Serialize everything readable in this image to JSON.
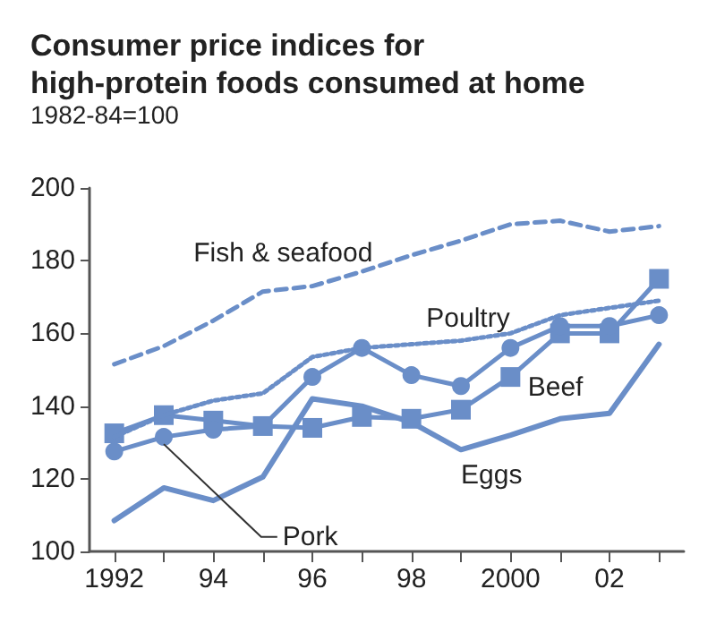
{
  "chart_data": {
    "type": "line",
    "title": "Consumer price indices for\nhigh-protein foods consumed at home",
    "subtitle": "1982-84=100",
    "x": [
      1992,
      1993,
      1994,
      1995,
      1996,
      1997,
      1998,
      1999,
      2000,
      2001,
      2002,
      2003
    ],
    "xlim": [
      1991.5,
      2003.5
    ],
    "xticks": [
      1992,
      {
        "value": 1993,
        "label": null
      },
      {
        "value": 1994,
        "label": "94"
      },
      {
        "value": 1995,
        "label": null
      },
      {
        "value": 1996,
        "label": "96"
      },
      {
        "value": 1997,
        "label": null
      },
      {
        "value": 1998,
        "label": "98"
      },
      {
        "value": 1999,
        "label": null
      },
      2000,
      {
        "value": 2001,
        "label": null
      },
      {
        "value": 2002,
        "label": "02"
      },
      {
        "value": 2003,
        "label": null
      }
    ],
    "ylim": [
      100,
      200
    ],
    "yticks": [
      100,
      120,
      140,
      160,
      180,
      200
    ],
    "grid": false,
    "legend": false,
    "series": [
      {
        "name": "Fish & seafood",
        "color": "#6a8ec8",
        "line_style": "dashed",
        "marker": "none",
        "values": [
          151.5,
          156.5,
          163.5,
          171.5,
          173,
          177,
          181.5,
          185.5,
          190,
          191,
          188,
          189.5
        ]
      },
      {
        "name": "Poultry",
        "color": "#6a8ec8",
        "line_style": "dotted",
        "marker": "none",
        "values": [
          131.5,
          137.5,
          141.5,
          143.5,
          153.5,
          156,
          157,
          158,
          160,
          165,
          167,
          169
        ]
      },
      {
        "name": "Pork",
        "color": "#6a8ec8",
        "line_style": "solid",
        "marker": "circle",
        "values": [
          127.5,
          131.5,
          133.5,
          134.5,
          148,
          156,
          148.5,
          145.5,
          156,
          162,
          162,
          165
        ]
      },
      {
        "name": "Beef",
        "color": "#6a8ec8",
        "line_style": "solid",
        "marker": "square",
        "values": [
          132.5,
          137.5,
          136,
          134.5,
          134,
          137,
          136.5,
          139,
          148,
          160,
          160,
          175
        ]
      },
      {
        "name": "Eggs",
        "color": "#6a8ec8",
        "line_style": "solid",
        "marker": "none",
        "values": [
          108.5,
          117.5,
          114,
          120.5,
          142,
          140,
          135.5,
          128,
          132,
          136.5,
          138,
          157
        ]
      }
    ]
  }
}
